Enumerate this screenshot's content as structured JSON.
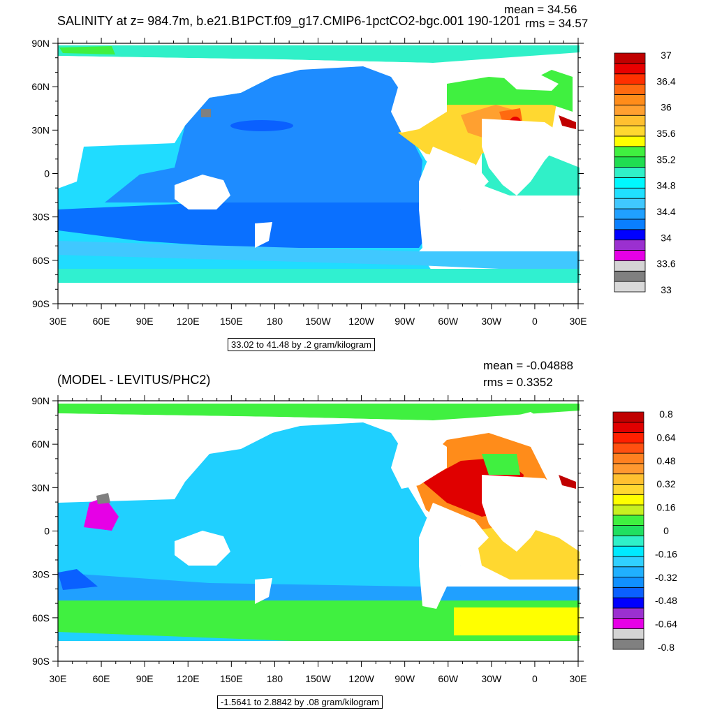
{
  "top": {
    "title": "SALINITY at z= 984.7m, b.e21.B1PCT.f09_g17.CMIP6-1pctCO2-bgc.001 190-1201",
    "mean": "mean = 34.56",
    "rms": "rms = 34.57",
    "range": "33.02 to 41.48 by .2 gram/kilogram",
    "colorbar": {
      "colors": [
        "#d9d9d9",
        "#808080",
        "#d4d4d4",
        "#e600e6",
        "#9b30d0",
        "#0000ff",
        "#0a7fff",
        "#20a0ff",
        "#40c8ff",
        "#20e0ff",
        "#00f8ff",
        "#30f0c8",
        "#20dd50",
        "#40f040",
        "#ffff00",
        "#ffd830",
        "#ffc030",
        "#ffa030",
        "#ff8c1a",
        "#ff6a10",
        "#ff3000",
        "#e80000",
        "#c00000"
      ],
      "labels": [
        "37",
        "36.4",
        "36",
        "35.6",
        "35.2",
        "34.8",
        "34.4",
        "34",
        "33.6",
        "33"
      ]
    }
  },
  "bottom": {
    "title": "(MODEL - LEVITUS/PHC2)",
    "mean": "mean = -0.04888",
    "rms": "rms = 0.3352",
    "range": "-1.5641 to 2.8842 by .08 gram/kilogram",
    "colorbar": {
      "colors": [
        "#808080",
        "#d4d4d4",
        "#e600e6",
        "#9b30d0",
        "#0000ff",
        "#0a60ff",
        "#1090ff",
        "#20b0ff",
        "#30d0ff",
        "#00eaff",
        "#30f0c8",
        "#20e060",
        "#40f040",
        "#c8f020",
        "#ffff00",
        "#ffd830",
        "#ffc030",
        "#ff9830",
        "#ff8020",
        "#ff5010",
        "#ff2000",
        "#e00000",
        "#c00000"
      ],
      "labels": [
        "0.8",
        "0.64",
        "0.48",
        "0.32",
        "0.16",
        "0",
        "-0.16",
        "-0.32",
        "-0.48",
        "-0.64",
        "-0.8"
      ]
    }
  },
  "axes": {
    "lat_labels": [
      "90N",
      "60N",
      "30N",
      "0",
      "30S",
      "60S",
      "90S"
    ],
    "lon_labels": [
      "30E",
      "60E",
      "90E",
      "120E",
      "150E",
      "180",
      "150W",
      "120W",
      "90W",
      "60W",
      "30W",
      "0",
      "30E"
    ]
  },
  "colors": {
    "ocean_top": "#1e8cff",
    "ocean_bottom": "#20c8ff",
    "land": "#ffffff"
  }
}
